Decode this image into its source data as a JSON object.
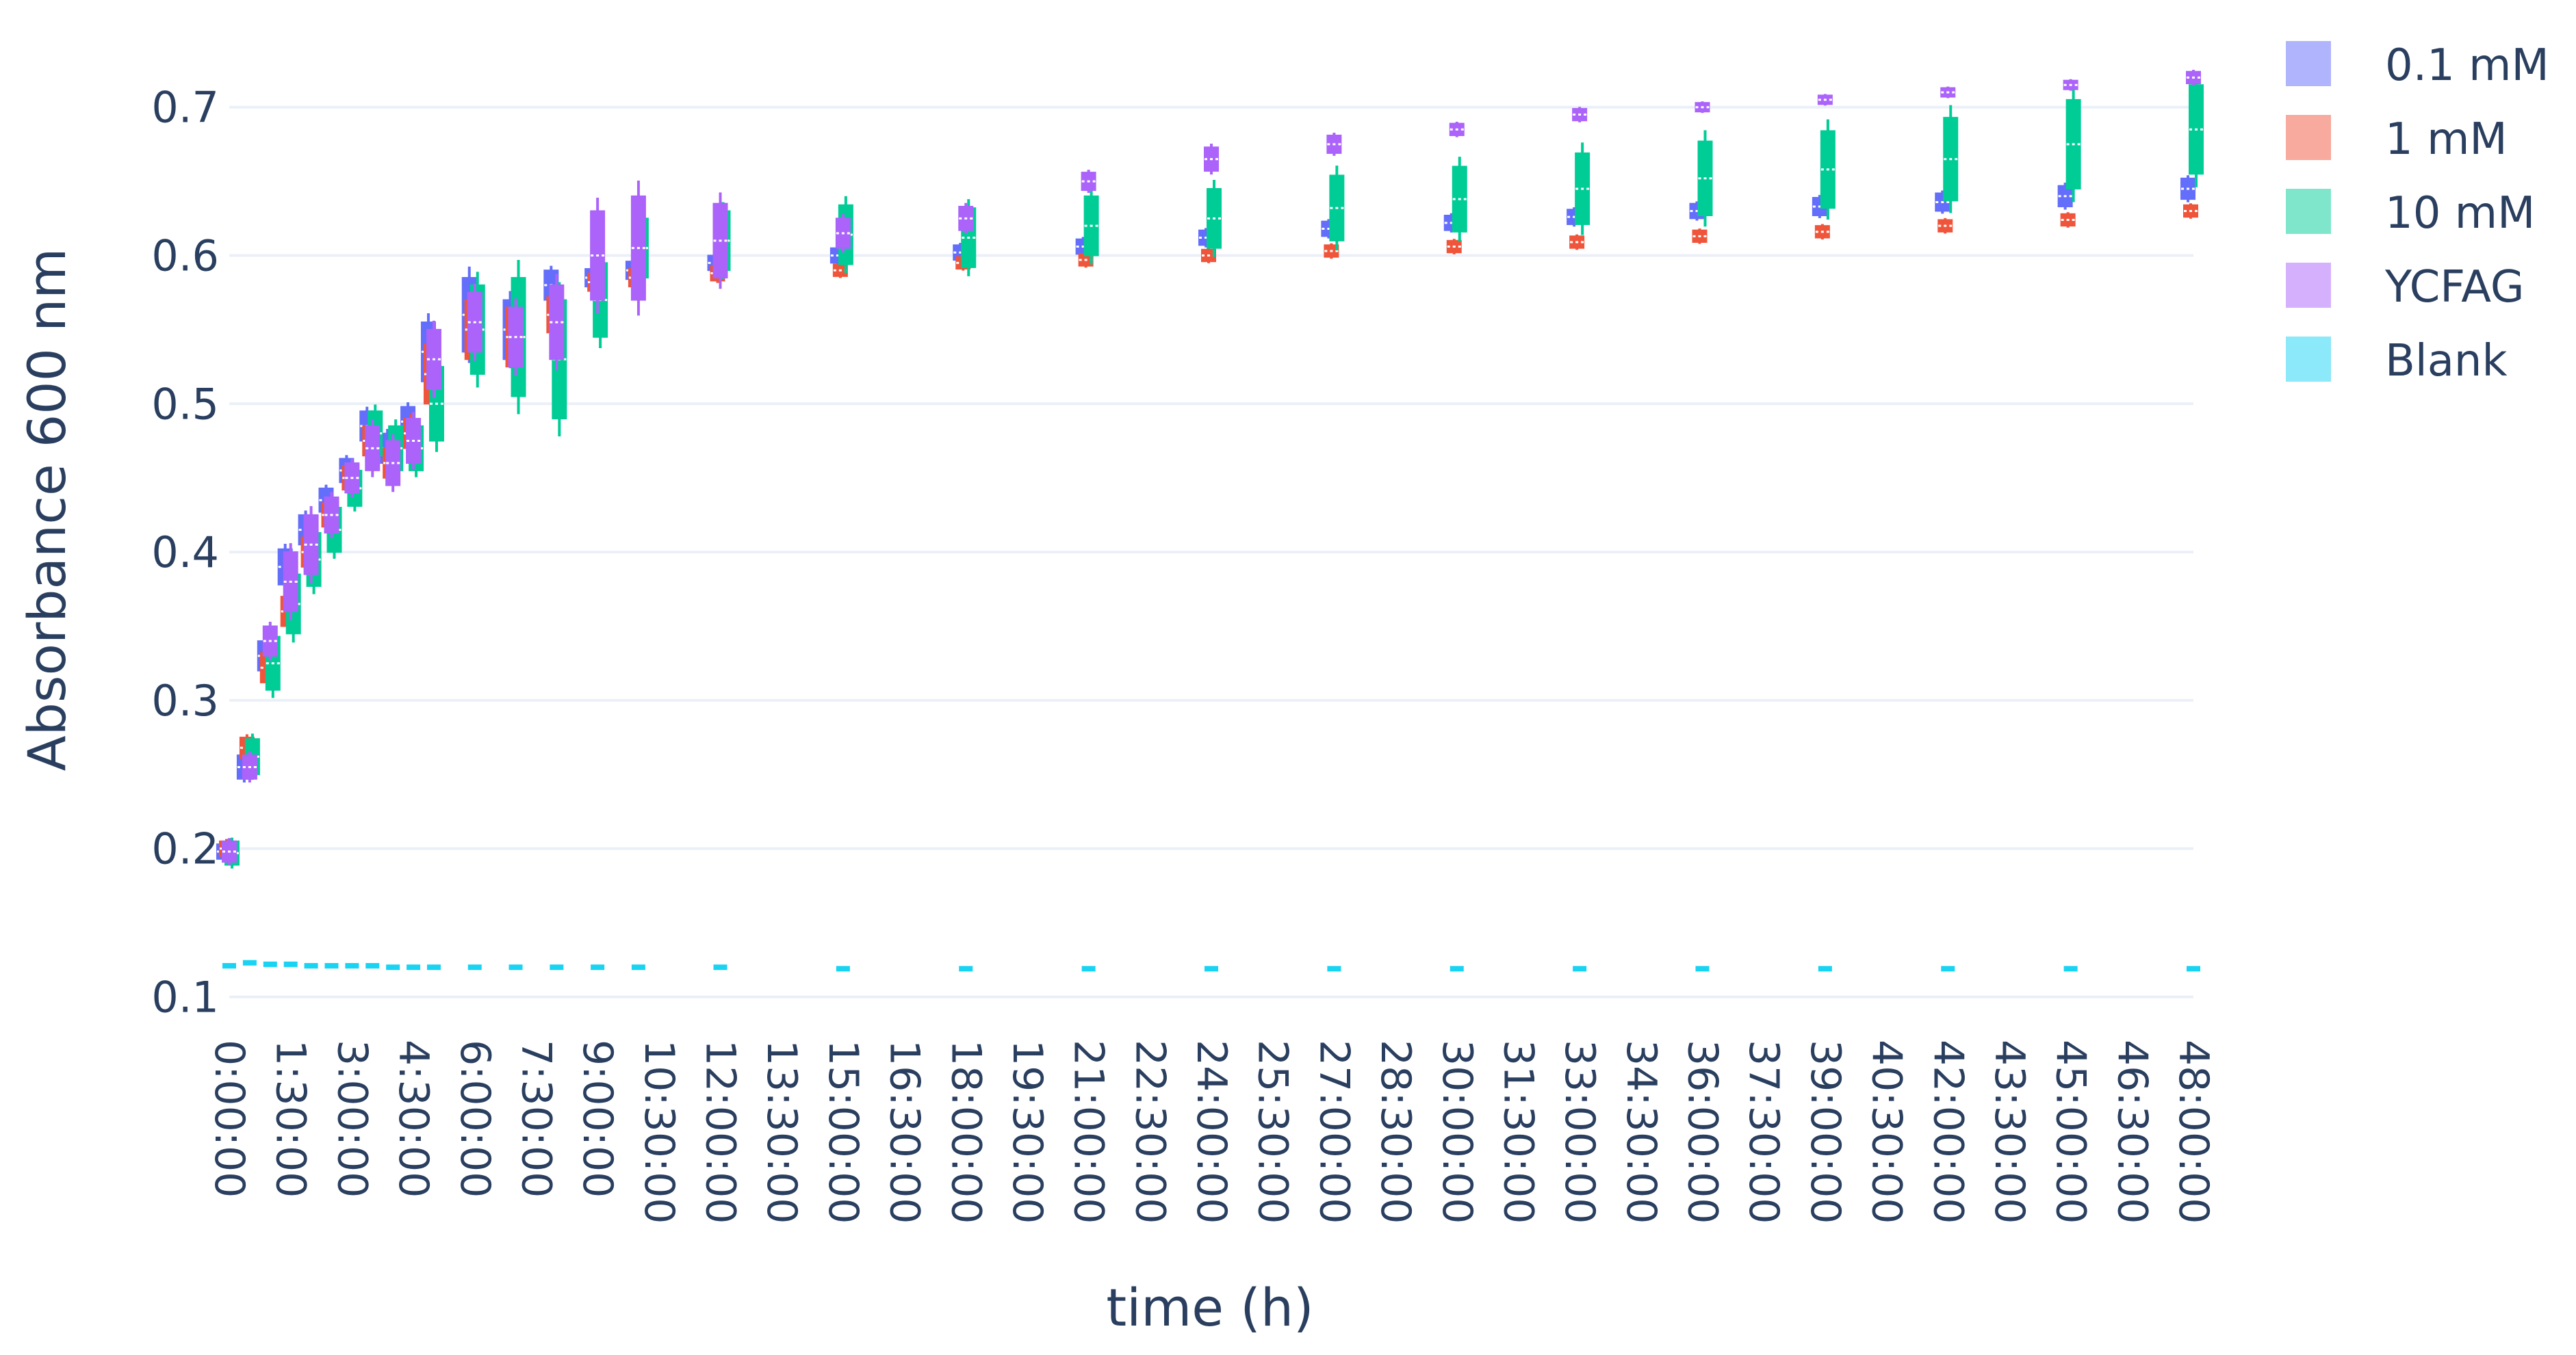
{
  "chart_data": {
    "type": "box",
    "xlabel": "time (h)",
    "ylabel": "Absorbance 600 nm",
    "ylim": [
      0.085,
      0.74
    ],
    "y_ticks": [
      "0.1",
      "0.2",
      "0.3",
      "0.4",
      "0.5",
      "0.6",
      "0.7"
    ],
    "x_tick_labels": [
      "0:00:00",
      "1:30:00",
      "3:00:00",
      "4:30:00",
      "6:00:00",
      "7:30:00",
      "9:00:00",
      "10:30:00",
      "12:00:00",
      "13:30:00",
      "15:00:00",
      "16:30:00",
      "18:00:00",
      "19:30:00",
      "21:00:00",
      "22:30:00",
      "24:00:00",
      "25:30:00",
      "27:00:00",
      "28:30:00",
      "30:00:00",
      "31:30:00",
      "33:00:00",
      "34:30:00",
      "36:00:00",
      "37:30:00",
      "39:00:00",
      "40:30:00",
      "42:00:00",
      "43:30:00",
      "45:00:00",
      "46:30:00",
      "48:00:00"
    ],
    "x_hours": [
      0,
      0.5,
      1,
      1.5,
      2,
      2.5,
      3,
      3.5,
      4,
      4.5,
      5,
      6,
      7,
      8,
      9,
      10,
      12,
      15,
      18,
      21,
      24,
      27,
      30,
      33,
      36,
      39,
      42,
      45,
      48
    ],
    "grid": true,
    "legend_position": "top-right",
    "series": [
      {
        "name": "0.1 mM",
        "color": "#636efa",
        "fill": "#b0b4fd",
        "median": [
          0.198,
          0.255,
          0.33,
          0.39,
          0.415,
          0.435,
          0.455,
          0.485,
          0.47,
          0.488,
          0.535,
          0.56,
          0.55,
          0.58,
          0.585,
          0.59,
          0.595,
          0.6,
          0.602,
          0.606,
          0.612,
          0.618,
          0.622,
          0.626,
          0.63,
          0.633,
          0.636,
          0.64,
          0.645
        ],
        "half_width": [
          0.005,
          0.008,
          0.01,
          0.012,
          0.01,
          0.008,
          0.008,
          0.01,
          0.01,
          0.01,
          0.02,
          0.025,
          0.02,
          0.01,
          0.006,
          0.006,
          0.005,
          0.005,
          0.005,
          0.005,
          0.005,
          0.005,
          0.005,
          0.005,
          0.005,
          0.006,
          0.006,
          0.007,
          0.007
        ]
      },
      {
        "name": "1 mM",
        "color": "#ef553b",
        "fill": "#f7aa9d",
        "median": [
          0.2,
          0.268,
          0.322,
          0.36,
          0.4,
          0.425,
          0.45,
          0.475,
          0.46,
          0.48,
          0.52,
          0.55,
          0.545,
          0.56,
          0.582,
          0.585,
          0.588,
          0.59,
          0.595,
          0.597,
          0.6,
          0.603,
          0.606,
          0.609,
          0.613,
          0.616,
          0.62,
          0.624,
          0.63
        ],
        "half_width": [
          0.005,
          0.007,
          0.01,
          0.01,
          0.01,
          0.008,
          0.008,
          0.01,
          0.01,
          0.01,
          0.02,
          0.02,
          0.02,
          0.012,
          0.006,
          0.006,
          0.005,
          0.004,
          0.004,
          0.004,
          0.004,
          0.004,
          0.004,
          0.004,
          0.004,
          0.004,
          0.004,
          0.004,
          0.004
        ]
      },
      {
        "name": "10 mM",
        "color": "#00cc96",
        "fill": "#80e6cb",
        "median": [
          0.197,
          0.262,
          0.325,
          0.365,
          0.395,
          0.415,
          0.443,
          0.48,
          0.47,
          0.47,
          0.5,
          0.55,
          0.545,
          0.53,
          0.57,
          0.605,
          0.61,
          0.614,
          0.612,
          0.62,
          0.625,
          0.632,
          0.638,
          0.645,
          0.652,
          0.658,
          0.665,
          0.675,
          0.685
        ],
        "half_width": [
          0.008,
          0.012,
          0.018,
          0.02,
          0.018,
          0.015,
          0.012,
          0.015,
          0.015,
          0.015,
          0.025,
          0.03,
          0.04,
          0.04,
          0.025,
          0.02,
          0.02,
          0.02,
          0.02,
          0.02,
          0.02,
          0.022,
          0.022,
          0.024,
          0.025,
          0.026,
          0.028,
          0.03,
          0.03
        ]
      },
      {
        "name": "YCFAG",
        "color": "#ab63fa",
        "fill": "#d5b1fd",
        "median": [
          0.198,
          0.255,
          0.34,
          0.38,
          0.405,
          0.425,
          0.45,
          0.47,
          0.46,
          0.475,
          0.53,
          0.555,
          0.545,
          0.555,
          0.6,
          0.605,
          0.61,
          0.615,
          0.625,
          0.65,
          0.665,
          0.675,
          0.685,
          0.695,
          0.7,
          0.705,
          0.71,
          0.715,
          0.72
        ],
        "half_width": [
          0.007,
          0.008,
          0.01,
          0.02,
          0.02,
          0.012,
          0.01,
          0.015,
          0.015,
          0.015,
          0.02,
          0.02,
          0.02,
          0.025,
          0.03,
          0.035,
          0.025,
          0.01,
          0.008,
          0.006,
          0.008,
          0.006,
          0.004,
          0.004,
          0.003,
          0.003,
          0.003,
          0.003,
          0.004
        ]
      },
      {
        "name": "Blank",
        "color": "#19d3f3",
        "fill": "#8ce9f9",
        "median": [
          0.121,
          0.123,
          0.122,
          0.122,
          0.121,
          0.121,
          0.121,
          0.121,
          0.12,
          0.12,
          0.12,
          0.12,
          0.12,
          0.12,
          0.12,
          0.12,
          0.12,
          0.119,
          0.119,
          0.119,
          0.119,
          0.119,
          0.119,
          0.119,
          0.119,
          0.119,
          0.119,
          0.119,
          0.119
        ],
        "half_width": [
          0.001,
          0.001,
          0.001,
          0.001,
          0.001,
          0.001,
          0.001,
          0.001,
          0.001,
          0.001,
          0.001,
          0.001,
          0.001,
          0.001,
          0.001,
          0.001,
          0.001,
          0.001,
          0.001,
          0.001,
          0.001,
          0.001,
          0.001,
          0.001,
          0.001,
          0.001,
          0.001,
          0.001,
          0.001
        ]
      }
    ]
  }
}
